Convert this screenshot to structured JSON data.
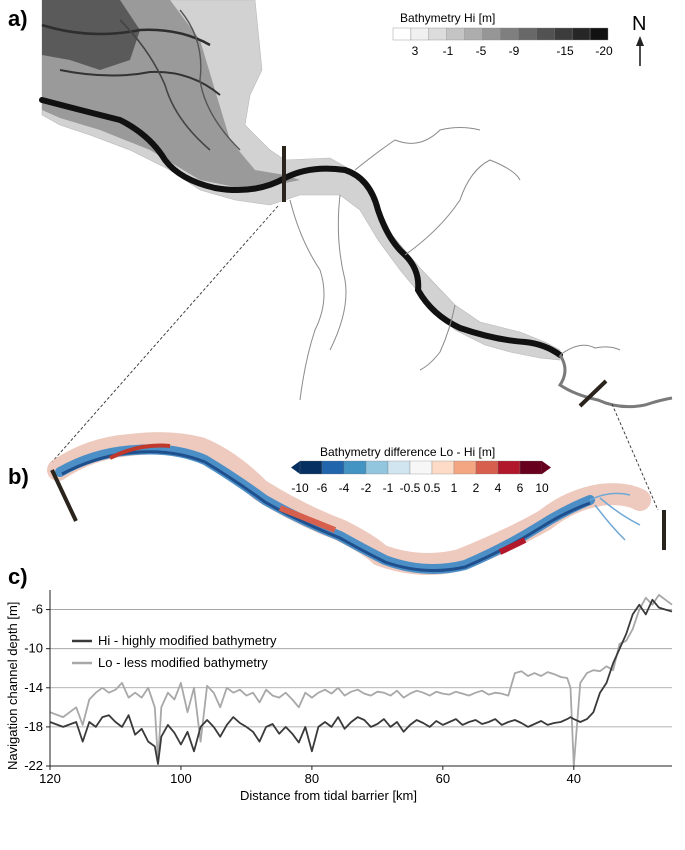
{
  "panels": {
    "a": "a)",
    "b": "b)",
    "c": "c)"
  },
  "north_arrow": {
    "label": "N",
    "icon": "north-arrow-icon"
  },
  "legend_a": {
    "title": "Bathymetry Hi  [m]",
    "ticks": [
      "3",
      "-1",
      "-5",
      "-9",
      "-15",
      "-20"
    ],
    "colors": [
      "#ffffff",
      "#f0f0f0",
      "#dcdcdc",
      "#c4c4c4",
      "#adadad",
      "#969696",
      "#7f7f7f",
      "#686868",
      "#525252",
      "#3c3c3c",
      "#262626",
      "#111111"
    ]
  },
  "legend_b": {
    "title": "Bathymetry difference Lo - Hi  [m]",
    "ticks": [
      "-10",
      "-6",
      "-4",
      "-2",
      "-1",
      "-0.5",
      "0.5",
      "1",
      "2",
      "4",
      "6",
      "10"
    ],
    "colors": [
      "#053061",
      "#2166ac",
      "#4393c3",
      "#92c5de",
      "#d1e5f0",
      "#f7f7f7",
      "#fddbc7",
      "#f4a582",
      "#d6604d",
      "#b2182b",
      "#67001f"
    ]
  },
  "chart_data": {
    "type": "line",
    "xlabel": "Distance from tidal barrier [km]",
    "ylabel": "Navigation channel depth [m]",
    "xlim": [
      120,
      25
    ],
    "ylim": [
      -22,
      -4
    ],
    "xticks": [
      120,
      100,
      80,
      60,
      40
    ],
    "yticks": [
      -6,
      -10,
      -14,
      -18,
      -22
    ],
    "grid": "horizontal",
    "legend_position": "top-left",
    "series": [
      {
        "name": "Hi - highly modified bathymetry",
        "color": "#3a3a3a",
        "x": [
          120,
          118,
          116,
          115,
          114,
          113,
          112,
          111,
          110,
          109,
          108,
          107,
          106,
          105,
          104,
          103.5,
          103,
          102,
          101,
          100,
          99,
          98,
          97,
          96,
          95,
          94,
          93,
          92,
          91,
          90,
          89,
          88,
          87,
          86,
          85,
          84,
          83,
          82,
          81,
          80,
          79,
          78,
          77,
          76,
          75,
          74,
          73,
          72,
          71,
          70,
          69,
          68,
          67,
          66,
          65,
          64,
          63,
          62,
          61,
          60,
          59,
          58,
          57,
          56,
          55,
          54,
          53,
          52,
          51,
          50,
          49,
          48,
          47,
          46,
          45,
          44,
          43,
          42,
          41,
          40.5,
          40,
          39,
          38,
          37,
          36,
          35,
          34,
          33,
          32,
          31,
          30,
          29,
          28,
          27,
          26,
          25
        ],
        "y": [
          -17.5,
          -18,
          -17.5,
          -19.5,
          -17.5,
          -18,
          -17,
          -16.8,
          -17.5,
          -18,
          -16.8,
          -18.8,
          -18.2,
          -19.5,
          -20,
          -21.8,
          -19,
          -17.8,
          -18.6,
          -19.8,
          -18.5,
          -20.5,
          -18,
          -17.3,
          -18,
          -19,
          -17.8,
          -17,
          -17.6,
          -18,
          -18.5,
          -19.5,
          -18,
          -17.7,
          -18.7,
          -18,
          -18.7,
          -19.6,
          -18,
          -20.5,
          -18,
          -17.5,
          -18,
          -17,
          -18.2,
          -17.5,
          -17,
          -17.3,
          -18,
          -17.7,
          -17.2,
          -18,
          -17.5,
          -18.5,
          -17.8,
          -17.3,
          -17.6,
          -18,
          -17.4,
          -17.8,
          -17.5,
          -17.2,
          -17.8,
          -17.5,
          -17.3,
          -17.7,
          -17.5,
          -17.2,
          -17.8,
          -17.5,
          -17.3,
          -17.6,
          -18,
          -17.7,
          -17.4,
          -17.8,
          -17.6,
          -17.5,
          -17.2,
          -17,
          -17.2,
          -17.5,
          -17.2,
          -16.5,
          -14.5,
          -13.5,
          -11.5,
          -10,
          -8.5,
          -6.5,
          -5.5,
          -6.5,
          -5,
          -5.8,
          -6,
          -6.2
        ]
      },
      {
        "name": "Lo - less modified bathymetry",
        "color": "#a8a8a8",
        "x": [
          120,
          118,
          116,
          115,
          114,
          113,
          112,
          111,
          110,
          109,
          108,
          107,
          106,
          105,
          104,
          103.5,
          103,
          102,
          101,
          100,
          99,
          98,
          97,
          96,
          95,
          94,
          93,
          92,
          91,
          90,
          89,
          88,
          87,
          86,
          85,
          84,
          83,
          82,
          81,
          80,
          79,
          78,
          77,
          76,
          75,
          74,
          73,
          72,
          71,
          70,
          69,
          68,
          67,
          66,
          65,
          64,
          63,
          62,
          61,
          60,
          59,
          58,
          57,
          56,
          55,
          54,
          53,
          52,
          51,
          50,
          49,
          48,
          47,
          46,
          45,
          44,
          43,
          42,
          41,
          40.5,
          40,
          39,
          38,
          37,
          36,
          35,
          34,
          33,
          32,
          31,
          30,
          29,
          28,
          27,
          26,
          25
        ],
        "y": [
          -16.5,
          -17,
          -16,
          -17.8,
          -15.2,
          -14.5,
          -14,
          -14.5,
          -14.2,
          -13.5,
          -15,
          -14.5,
          -15,
          -14,
          -16,
          -21.5,
          -16,
          -14.5,
          -15.2,
          -13.5,
          -16.5,
          -14,
          -19.5,
          -13.8,
          -14.5,
          -16,
          -14,
          -14.5,
          -14.2,
          -14.8,
          -14.5,
          -15.5,
          -14.2,
          -14.8,
          -15,
          -14.5,
          -15.2,
          -16,
          -14.5,
          -15,
          -14.5,
          -14.2,
          -14.6,
          -14,
          -14.8,
          -14.4,
          -14.2,
          -14.6,
          -14.8,
          -14.4,
          -14.5,
          -14.8,
          -14.3,
          -15,
          -14.6,
          -14.3,
          -14.5,
          -14.8,
          -14.4,
          -14.6,
          -14.7,
          -14.4,
          -14.6,
          -14.8,
          -14.5,
          -14.3,
          -14.7,
          -14.5,
          -14.6,
          -14.8,
          -12.5,
          -12.3,
          -12.8,
          -12.5,
          -12.8,
          -12.4,
          -12.6,
          -12.9,
          -13,
          -14,
          -22,
          -13.5,
          -12.5,
          -12.2,
          -12.3,
          -11.8,
          -12.2,
          -9.5,
          -9.2,
          -8,
          -6,
          -4.8,
          -5.5,
          -4.5,
          -5,
          -5.5
        ]
      }
    ]
  }
}
